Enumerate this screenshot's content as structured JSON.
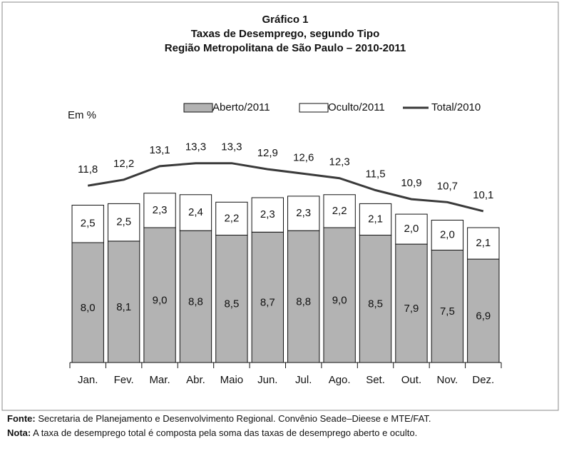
{
  "chart_data": {
    "type": "bar",
    "title": "Gráfico 1",
    "subtitle": [
      "Taxas de Desemprego, segundo Tipo",
      "Região Metropolitana de São Paulo – 2010-2011"
    ],
    "y_label": "Em %",
    "categories": [
      "Jan.",
      "Fev.",
      "Mar.",
      "Abr.",
      "Maio",
      "Jun.",
      "Jul.",
      "Ago.",
      "Set.",
      "Out.",
      "Nov.",
      "Dez."
    ],
    "series": [
      {
        "name": "Aberto/2011",
        "type": "bar",
        "color": "#b3b3b3",
        "values": [
          8.0,
          8.1,
          9.0,
          8.8,
          8.5,
          8.7,
          8.8,
          9.0,
          8.5,
          7.9,
          7.5,
          6.9
        ],
        "value_labels": [
          "8,0",
          "8,1",
          "9,0",
          "8,8",
          "8,5",
          "8,7",
          "8,8",
          "9,0",
          "8,5",
          "7,9",
          "7,5",
          "6,9"
        ]
      },
      {
        "name": "Oculto/2011",
        "type": "bar",
        "color": "#ffffff",
        "values": [
          2.5,
          2.5,
          2.3,
          2.4,
          2.2,
          2.3,
          2.3,
          2.2,
          2.1,
          2.0,
          2.0,
          2.1
        ],
        "value_labels": [
          "2,5",
          "2,5",
          "2,3",
          "2,4",
          "2,2",
          "2,3",
          "2,3",
          "2,2",
          "2,1",
          "2,0",
          "2,0",
          "2,1"
        ]
      },
      {
        "name": "Total/2010",
        "type": "line",
        "color": "#3a3a3a",
        "values": [
          11.8,
          12.2,
          13.1,
          13.3,
          13.3,
          12.9,
          12.6,
          12.3,
          11.5,
          10.9,
          10.7,
          10.1
        ],
        "value_labels": [
          "11,8",
          "12,2",
          "13,1",
          "13,3",
          "13,3",
          "12,9",
          "12,6",
          "12,3",
          "11,5",
          "10,9",
          "10,7",
          "10,1"
        ]
      }
    ]
  },
  "notes": [
    {
      "label": "Fonte:",
      "text": "Secretaria de Planejamento e Desenvolvimento Regional. Convênio Seade–Dieese e MTE/FAT."
    },
    {
      "label": "Nota:",
      "text": "A taxa de desemprego total é composta pela soma das taxas de desemprego aberto e oculto."
    }
  ]
}
